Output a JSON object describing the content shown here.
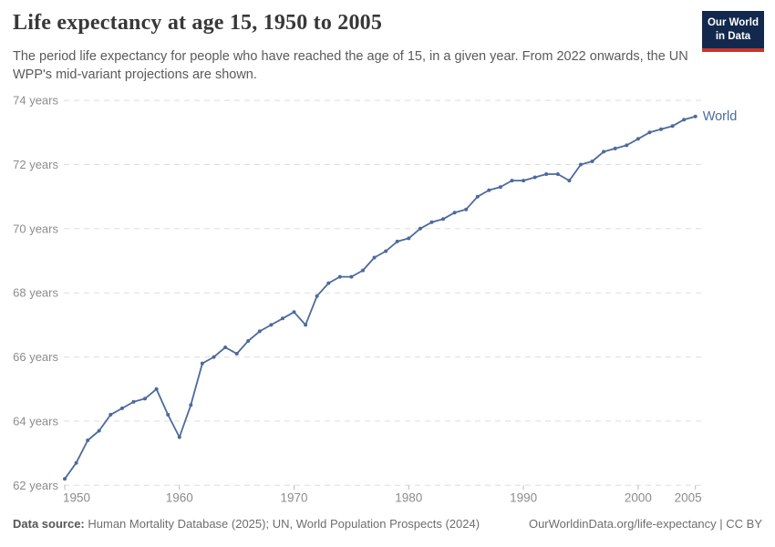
{
  "header": {
    "title": "Life expectancy at age 15, 1950 to 2005",
    "subtitle": "The period life expectancy for people who have reached the age of 15, in a given year. From 2022 onwards, the UN WPP's mid-variant projections are shown."
  },
  "logo": {
    "line1": "Our World",
    "line2": "in Data"
  },
  "chart_data": {
    "type": "line",
    "title": "Life expectancy at age 15, 1950 to 2005",
    "xlabel": "",
    "ylabel": "",
    "x": [
      1950,
      1951,
      1952,
      1953,
      1954,
      1955,
      1956,
      1957,
      1958,
      1959,
      1960,
      1961,
      1962,
      1963,
      1964,
      1965,
      1966,
      1967,
      1968,
      1969,
      1970,
      1971,
      1972,
      1973,
      1974,
      1975,
      1976,
      1977,
      1978,
      1979,
      1980,
      1981,
      1982,
      1983,
      1984,
      1985,
      1986,
      1987,
      1988,
      1989,
      1990,
      1991,
      1992,
      1993,
      1994,
      1995,
      1996,
      1997,
      1998,
      1999,
      2000,
      2001,
      2002,
      2003,
      2004,
      2005
    ],
    "series": [
      {
        "name": "World",
        "values": [
          62.2,
          62.7,
          63.4,
          63.7,
          64.2,
          64.4,
          64.6,
          64.7,
          65.0,
          64.2,
          63.5,
          64.5,
          65.8,
          66.0,
          66.3,
          66.1,
          66.5,
          66.8,
          67.0,
          67.2,
          67.4,
          67.0,
          67.9,
          68.3,
          68.5,
          68.5,
          68.7,
          69.1,
          69.3,
          69.6,
          69.7,
          70.0,
          70.2,
          70.3,
          70.5,
          70.6,
          71.0,
          71.2,
          71.3,
          71.5,
          71.5,
          71.6,
          71.7,
          71.7,
          71.5,
          72.0,
          72.1,
          72.4,
          72.5,
          72.6,
          72.8,
          73.0,
          73.1,
          73.2,
          73.4,
          73.5
        ]
      }
    ],
    "yticks": [
      62,
      64,
      66,
      68,
      70,
      72,
      74
    ],
    "ytick_suffix": " years",
    "xticks": [
      1950,
      1960,
      1970,
      1980,
      1990,
      2000,
      2005
    ],
    "ylim": [
      62,
      74.4
    ],
    "xlim": [
      1950,
      2005.6
    ],
    "grid": "dashed-horizontal",
    "legend": "end-of-line label",
    "markers": true
  },
  "footer": {
    "data_source_label": "Data source:",
    "data_source_text": "Human Mortality Database (2025); UN, World Population Prospects (2024)",
    "url": "OurWorldinData.org/life-expectancy",
    "right_suffix": " | CC BY"
  },
  "colors": {
    "line": "#4C6A9C",
    "logo_bg": "#12294D",
    "logo_red": "#C8352C",
    "grid": "#DEDEDE",
    "tick": "#BBBBBB",
    "axis_text": "#8C8C8C",
    "title_text": "#383838",
    "subtitle_text": "#5A5A5A",
    "footer_text": "#6E6E6E"
  }
}
